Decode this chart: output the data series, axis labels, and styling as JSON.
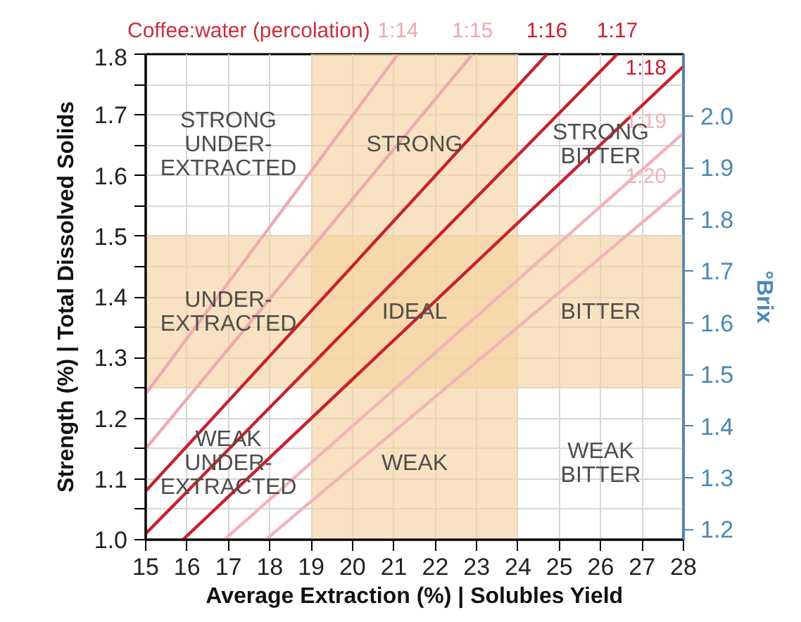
{
  "chart_data": {
    "type": "line",
    "title": "Coffee:water (percolation)",
    "xlabel": "Average Extraction (%) | Solubles Yield",
    "ylabel": "Strength (%) | Total Dissolved Solids",
    "y2label": "°Brix",
    "xlim": [
      15,
      28
    ],
    "xticks": [
      15,
      16,
      17,
      18,
      19,
      20,
      21,
      22,
      23,
      24,
      25,
      26,
      27,
      28
    ],
    "ylim": [
      1.0,
      1.8
    ],
    "yticks": [
      {
        "value": 1.0,
        "label": "1.0"
      },
      {
        "value": 1.05,
        "label": null
      },
      1.1,
      {
        "value": 1.15,
        "label": null
      },
      1.2,
      {
        "value": 1.25,
        "label": null
      },
      1.3,
      {
        "value": 1.35,
        "label": null
      },
      1.4,
      {
        "value": 1.45,
        "label": null
      },
      1.5,
      {
        "value": 1.55,
        "label": null
      },
      1.6,
      {
        "value": 1.65,
        "label": null
      },
      1.7,
      {
        "value": 1.75,
        "label": null
      },
      1.8
    ],
    "y2lim": [
      1.18,
      2.12
    ],
    "y2ticks": [
      1.2,
      1.3,
      1.4,
      1.5,
      1.6,
      1.7,
      1.8,
      1.9,
      {
        "value": 2.0,
        "label": "2.0"
      }
    ],
    "grid": true,
    "series": [
      {
        "name": "1:14",
        "color": "#f0a8b0",
        "x": [
          15,
          21.1
        ],
        "values": [
          1.24,
          1.8
        ]
      },
      {
        "name": "1:15",
        "color": "#f0a8b0",
        "x": [
          15,
          22.9
        ],
        "values": [
          1.15,
          1.8
        ]
      },
      {
        "name": "1:16",
        "color": "#c8202e",
        "x": [
          15,
          24.7
        ],
        "values": [
          1.08,
          1.8
        ]
      },
      {
        "name": "1:17",
        "color": "#c8202e",
        "x": [
          15,
          26.4
        ],
        "values": [
          1.01,
          1.8
        ]
      },
      {
        "name": "1:18",
        "color": "#c8202e",
        "x": [
          15.9,
          28
        ],
        "values": [
          1.0,
          1.78
        ]
      },
      {
        "name": "1:19",
        "color": "#f2b3b9",
        "x": [
          16.9,
          28
        ],
        "values": [
          1.0,
          1.67
        ]
      },
      {
        "name": "1:20",
        "color": "#f2b3b9",
        "x": [
          17.9,
          28
        ],
        "values": [
          1.0,
          1.58
        ]
      }
    ],
    "bands": [
      {
        "axis": "x",
        "from": 19,
        "to": 24,
        "color": "#f5d3a0"
      },
      {
        "axis": "y",
        "from": 1.25,
        "to": 1.5,
        "color": "#f5d3a0"
      }
    ],
    "annotations": [
      "STRONG\nUNDER-\nEXTRACTED",
      "STRONG",
      "STRONG\nBITTER",
      "UNDER-\nEXTRACTED",
      "IDEAL",
      "BITTER",
      "WEAK\nUNDER-\nEXTRACTED",
      "WEAK",
      "WEAK\nBITTER"
    ]
  }
}
